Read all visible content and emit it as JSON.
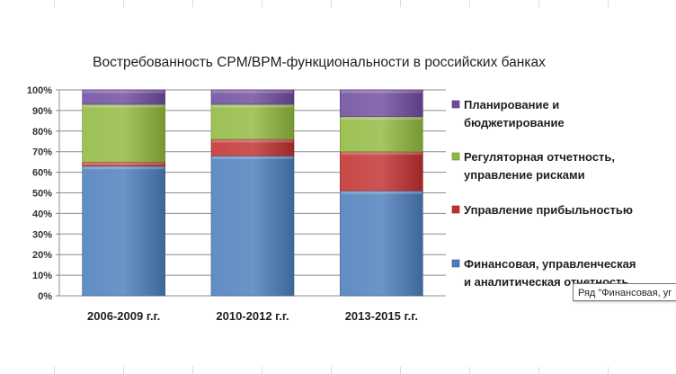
{
  "chart_data": {
    "type": "bar",
    "stacked": true,
    "percent": true,
    "title": "Востребованность  CPM/BPM-функциональности  в российских банках",
    "categories": [
      "2006-2009 г.г.",
      "2010-2012 г.г.",
      "2013-2015 г.г."
    ],
    "ylim": [
      0,
      100
    ],
    "yticks": [
      "0%",
      "10%",
      "20%",
      "30%",
      "40%",
      "50%",
      "60%",
      "70%",
      "80%",
      "90%",
      "100%"
    ],
    "grid": true,
    "legend_position": "right",
    "series": [
      {
        "name": "Финансовая, управленческая и аналитическая отчетность",
        "legend_lines": [
          "Финансовая, управленческая",
          "и аналитическая отчетность"
        ],
        "color": "#4a7ebb",
        "values": [
          63,
          68,
          51
        ]
      },
      {
        "name": "Управление прибыльностью",
        "legend_lines": [
          "Управление прибыльностью"
        ],
        "color": "#c0302e",
        "values": [
          2,
          8,
          19
        ]
      },
      {
        "name": "Регуляторная отчетность, управление рисками",
        "legend_lines": [
          "Регуляторная отчетность,",
          "управление рисками"
        ],
        "color": "#90b83f",
        "values": [
          28,
          17,
          17
        ]
      },
      {
        "name": "Планирование и бюджетирование",
        "legend_lines": [
          "Планирование и",
          "бюджетирование"
        ],
        "color": "#6e4a9e",
        "values": [
          7,
          7,
          13
        ]
      }
    ]
  },
  "tooltip": {
    "text": "Ряд \"Финансовая, уг"
  }
}
